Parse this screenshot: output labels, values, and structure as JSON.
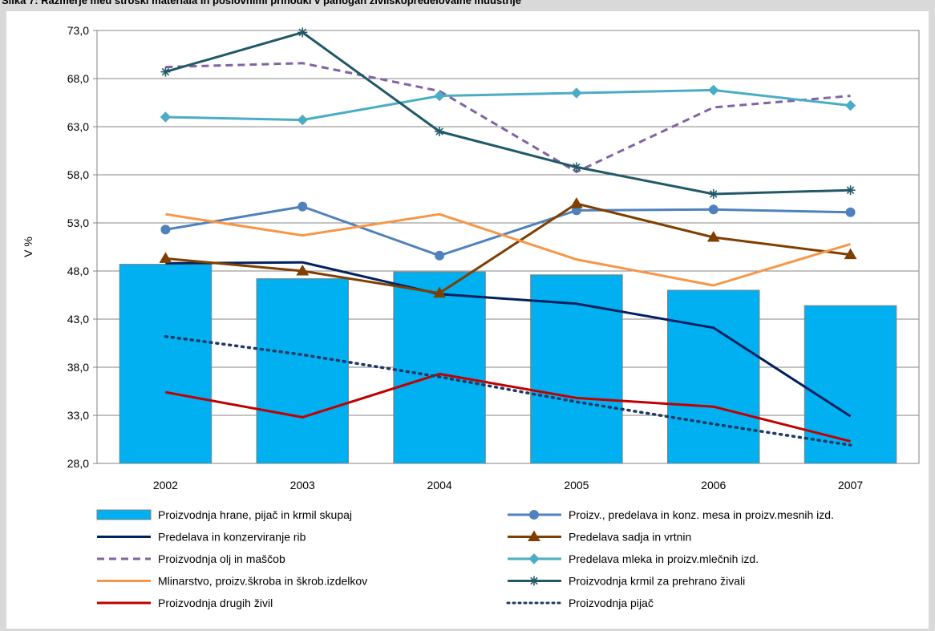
{
  "chart_data": {
    "type": "bar+line",
    "title": "Slika 7: Razmerje med stroški materiala in poslovnimi prihodki v panogah živilskopredelovalne industrije",
    "xlabel": "",
    "ylabel": "V %",
    "ylim": [
      28,
      73
    ],
    "yticks": [
      "28,0",
      "33,0",
      "38,0",
      "43,0",
      "48,0",
      "53,0",
      "58,0",
      "63,0",
      "68,0",
      "73,0"
    ],
    "categories": [
      "2002",
      "2003",
      "2004",
      "2005",
      "2006",
      "2007"
    ],
    "grid": true,
    "legend_position": "bottom",
    "series": [
      {
        "name": "Proizvodnja hrane, pijač in krmil skupaj",
        "kind": "bar",
        "color": "#00b0f0",
        "values": [
          48.7,
          47.2,
          47.9,
          47.6,
          46.0,
          44.4
        ]
      },
      {
        "name": "Proizv., predelava in konz. mesa in proizv.mesnih izd.",
        "kind": "line",
        "color": "#4f81bd",
        "marker": "circle",
        "values": [
          52.3,
          54.7,
          49.6,
          54.3,
          54.4,
          54.1
        ]
      },
      {
        "name": "Predelava in konzerviranje rib",
        "kind": "line",
        "color": "#002060",
        "marker": "none",
        "values": [
          48.8,
          48.9,
          45.6,
          44.6,
          42.1,
          32.9
        ]
      },
      {
        "name": "Predelava sadja in vrtnin",
        "kind": "line",
        "color": "#7f3f00",
        "marker": "triangle",
        "values": [
          49.3,
          48.0,
          45.7,
          55.0,
          51.5,
          49.7
        ]
      },
      {
        "name": "Proizvodnja olj in maščob",
        "kind": "line",
        "color": "#8064a2",
        "marker": "none",
        "dash": "dashed",
        "values": [
          69.2,
          69.6,
          66.7,
          58.3,
          65.0,
          66.2
        ]
      },
      {
        "name": "Predelava mleka in proizv.mlečnih izd.",
        "kind": "line",
        "color": "#4bacc6",
        "marker": "diamond",
        "values": [
          64.0,
          63.7,
          66.2,
          66.5,
          66.8,
          65.2
        ]
      },
      {
        "name": "Mlinarstvo, proizv.škroba in škrob.izdelkov",
        "kind": "line",
        "color": "#f79646",
        "marker": "none",
        "values": [
          53.9,
          51.7,
          53.9,
          49.2,
          46.5,
          50.8
        ]
      },
      {
        "name": "Proizvodnja krmil za prehrano živali",
        "kind": "line",
        "color": "#215967",
        "marker": "star",
        "values": [
          68.7,
          72.8,
          62.5,
          58.8,
          56.0,
          56.4
        ]
      },
      {
        "name": "Proizvodnja drugih živil",
        "kind": "line",
        "color": "#c00000",
        "marker": "none",
        "values": [
          35.4,
          32.8,
          37.3,
          34.8,
          33.9,
          30.3
        ]
      },
      {
        "name": "Proizvodnja pijač",
        "kind": "line",
        "color": "#1f3864",
        "marker": "none",
        "dash": "dotted",
        "values": [
          41.2,
          39.3,
          37.0,
          34.4,
          32.1,
          29.9
        ]
      }
    ]
  }
}
